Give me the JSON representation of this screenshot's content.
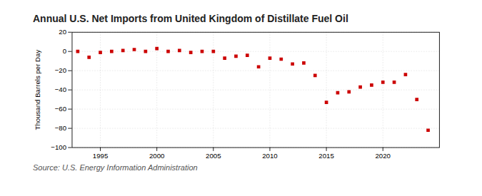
{
  "chart_data": {
    "type": "scatter",
    "title": "Annual U.S. Net Imports from United Kingdom of Distillate Fuel Oil",
    "ylabel": "Thousand Barrels per Day",
    "source": "Source: U.S. Energy Information Administration",
    "x": [
      1993,
      1994,
      1995,
      1996,
      1997,
      1998,
      1999,
      2000,
      2001,
      2002,
      2003,
      2004,
      2005,
      2006,
      2007,
      2008,
      2009,
      2010,
      2011,
      2012,
      2013,
      2014,
      2015,
      2016,
      2017,
      2018,
      2019,
      2020,
      2021,
      2022,
      2023,
      2024
    ],
    "values": [
      0,
      -6,
      -1,
      0,
      1,
      2,
      0,
      3,
      0,
      1,
      -1,
      0,
      0,
      -7,
      -5,
      -4,
      -16,
      -7,
      -8,
      -13,
      -12,
      -25,
      -53,
      -43,
      -42,
      -37,
      -35,
      -32,
      -32,
      -24,
      -50,
      -82
    ],
    "color": "#cc0000",
    "marker": "square",
    "grid": true,
    "xlim": [
      1992.5,
      2025
    ],
    "xticks": [
      1995,
      2000,
      2005,
      2010,
      2015,
      2020
    ],
    "ylim": [
      -100,
      20
    ],
    "yticks": [
      -100,
      -80,
      -60,
      -40,
      -20,
      0,
      20
    ]
  }
}
